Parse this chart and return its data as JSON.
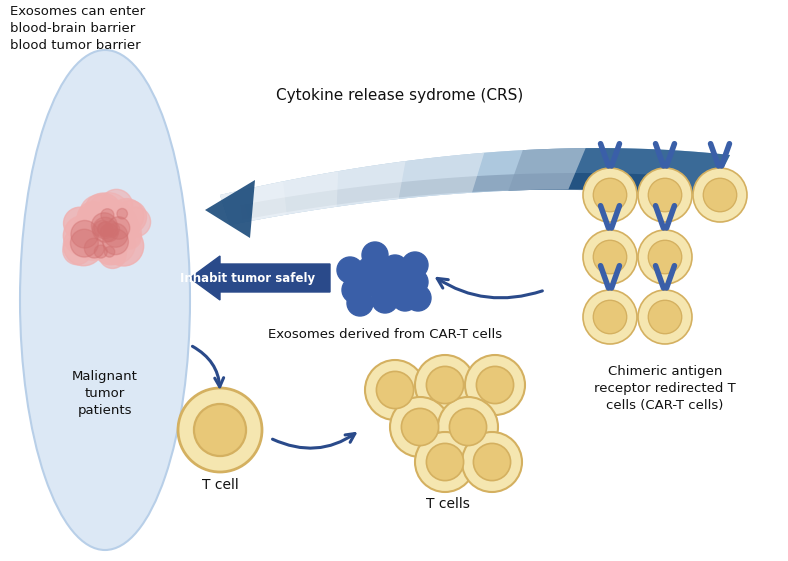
{
  "bg_color": "#ffffff",
  "ellipse_color": "#dce8f5",
  "ellipse_edge": "#b8cfe8",
  "tumor_pink_light": "#f0b0b0",
  "tumor_pink_dark": "#d07070",
  "tcell_fill": "#f5e6b0",
  "tcell_edge": "#d4b060",
  "tcell_inner": "#e8c878",
  "exosome_color": "#3a5fa8",
  "car_receptor_color": "#3a5fa8",
  "arrow_color": "#2a4a8a",
  "crs_dark": "#1a4a7a",
  "crs_mid": "#3a7ab0",
  "crs_light": "#aaccee",
  "text_color": "#111111",
  "label_top_left": "Exosomes can enter\nblood-brain barrier\nblood tumor barrier",
  "label_crs": "Cytokine release sydrome (CRS)",
  "label_malignant": "Malignant\ntumor\npatients",
  "label_inhabit": "Inhabit tumor safely",
  "label_exosomes": "Exosomes derived from CAR-T cells",
  "label_car": "Chimeric antigen\nreceptor redirected T\ncells (CAR-T cells)",
  "label_tcell": "T cell",
  "label_tcells": "T cells",
  "figsize": [
    7.88,
    5.61
  ],
  "dpi": 100
}
